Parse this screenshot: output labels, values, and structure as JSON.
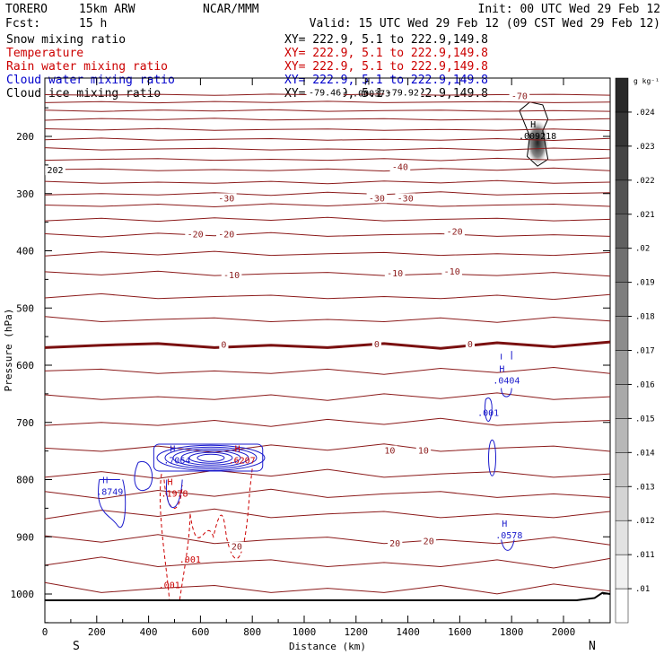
{
  "header": {
    "model": "TORERO",
    "resolution": "15km ARW",
    "org": "NCAR/MMM",
    "init": "Init: 00 UTC Wed 29 Feb 12",
    "fcst_label": "Fcst:",
    "fcst_value": "15 h",
    "valid": "Valid: 15 UTC Wed 29 Feb 12 (09 CST Wed 29 Feb 12)"
  },
  "legend": [
    {
      "name": "Snow mixing ratio",
      "xy": "XY= 222.9,  5.1 to 222.9,149.8",
      "color": "#000000"
    },
    {
      "name": "Temperature",
      "xy": "XY= 222.9,  5.1 to 222.9,149.8",
      "color": "#cc0000"
    },
    {
      "name": "Rain water mixing ratio",
      "xy": "XY= 222.9,  5.1 to 222.9,149.8",
      "color": "#cc0000"
    },
    {
      "name": "Cloud water mixing ratio",
      "xy": "XY= 222.9,  5.1 to 222.9,149.8",
      "color": "#0000cc"
    },
    {
      "name": "Cloud ice mixing ratio",
      "xy": "XY= 222.9,  5.1 to 222.9,149.8",
      "color": "#000000"
    }
  ],
  "colorbar": {
    "unit": "g kg⁻¹",
    "labels": [
      ".01",
      ".011",
      ".012",
      ".013",
      ".014",
      ".015",
      ".016",
      ".017",
      ".018",
      ".019",
      ".02",
      ".021",
      ".022",
      ".023",
      ".024"
    ]
  },
  "ends": {
    "left": "S",
    "right": "N"
  },
  "chart_data": {
    "type": "contour",
    "xlabel": "Distance (km)",
    "ylabel": "Pressure (hPa)",
    "xlim": [
      0,
      2180
    ],
    "ylim_reversed": [
      1050,
      100
    ],
    "xticks": [
      0,
      200,
      400,
      600,
      800,
      1000,
      1200,
      1400,
      1600,
      1800,
      2000
    ],
    "yticks": [
      200,
      300,
      400,
      500,
      600,
      700,
      800,
      900,
      1000
    ],
    "temperature_isotherms": [
      {
        "label": "-70",
        "pressure": 140
      },
      {
        "label": "-40",
        "pressure": 255
      },
      {
        "label": "-30",
        "pressure": 315
      },
      {
        "label": "-20",
        "pressure": 370
      },
      {
        "label": "-10",
        "pressure": 445
      },
      {
        "label": "0",
        "pressure": 565
      },
      {
        "label": "10",
        "pressure": 745
      },
      {
        "label": "20",
        "pressure": 910
      }
    ],
    "isotherm_labels": [
      {
        "text": "-70",
        "x": 1830,
        "p": 133
      },
      {
        "text": "-40",
        "x": 1370,
        "p": 257
      },
      {
        "text": "-30",
        "x": 700,
        "p": 312
      },
      {
        "text": "-30",
        "x": 1280,
        "p": 312
      },
      {
        "text": "-30",
        "x": 1390,
        "p": 312
      },
      {
        "text": "-20",
        "x": 580,
        "p": 375
      },
      {
        "text": "-20",
        "x": 700,
        "p": 375
      },
      {
        "text": "-20",
        "x": 1580,
        "p": 370
      },
      {
        "text": "-10",
        "x": 720,
        "p": 446
      },
      {
        "text": "-10",
        "x": 1350,
        "p": 443
      },
      {
        "text": "-10",
        "x": 1570,
        "p": 440
      },
      {
        "text": "0",
        "x": 690,
        "p": 568
      },
      {
        "text": "0",
        "x": 1280,
        "p": 567
      },
      {
        "text": "0",
        "x": 1640,
        "p": 567
      },
      {
        "text": "10",
        "x": 1330,
        "p": 753
      },
      {
        "text": "10",
        "x": 1460,
        "p": 753
      },
      {
        "text": "20",
        "x": 740,
        "p": 921
      },
      {
        "text": "20",
        "x": 1350,
        "p": 915
      },
      {
        "text": "20",
        "x": 1480,
        "p": 911
      }
    ],
    "maxima": [
      {
        "text": ".7064",
        "x": 510,
        "p": 772,
        "series": "cloud water"
      },
      {
        "text": ".8749",
        "x": 250,
        "p": 827,
        "series": "cloud water"
      },
      {
        "text": ".0578",
        "x": 1790,
        "p": 903,
        "series": "cloud water"
      },
      {
        "text": ".0404",
        "x": 1780,
        "p": 632,
        "series": "cloud water"
      },
      {
        "text": ".001",
        "x": 1710,
        "p": 689,
        "series": "cloud water"
      },
      {
        "text": ".6207",
        "x": 760,
        "p": 772,
        "series": "rain water"
      },
      {
        "text": ".1978",
        "x": 500,
        "p": 830,
        "series": "rain water"
      },
      {
        "text": ".001",
        "x": 560,
        "p": 945,
        "series": "rain water"
      },
      {
        "text": ".001",
        "x": 480,
        "p": 990,
        "series": "rain water"
      },
      {
        "text": ".009218",
        "x": 1900,
        "p": 205,
        "series": "cloud ice"
      },
      {
        "text": ".000373",
        "x": 1260,
        "p": 130,
        "series": "cloud ice"
      }
    ],
    "misc_labels": [
      {
        "text": "202",
        "x": 40,
        "p": 263
      },
      {
        "text": "-79.46",
        "x": 1080,
        "p": 127
      },
      {
        "text": "-79.92",
        "x": 1380,
        "p": 127
      }
    ]
  }
}
